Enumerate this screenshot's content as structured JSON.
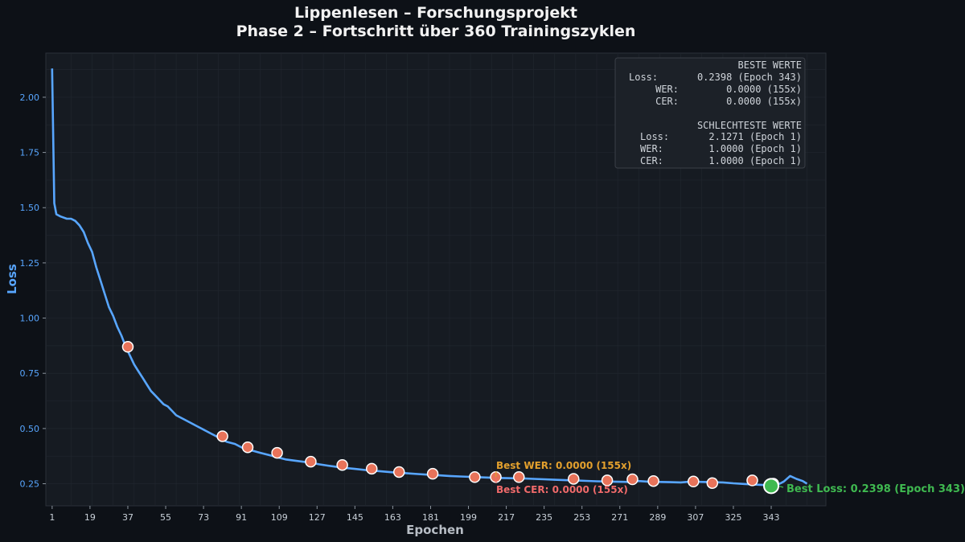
{
  "chart_data": {
    "type": "line",
    "title": "Lippenlesen – Forschungsprojekt",
    "subtitle": "Phase 2 – Fortschritt über 360 Trainingszyklen",
    "xlabel": "Epochen",
    "ylabel": "Loss",
    "xlim": [
      -2,
      369
    ],
    "ylim": [
      0.15,
      2.2
    ],
    "x_ticks": [
      1,
      19,
      37,
      55,
      73,
      91,
      109,
      127,
      145,
      163,
      181,
      199,
      217,
      235,
      253,
      271,
      289,
      307,
      325,
      343
    ],
    "y_ticks": [
      0.25,
      0.5,
      0.75,
      1.0,
      1.25,
      1.5,
      1.75,
      2.0
    ],
    "y_tick_labels": [
      "0.25",
      "0.50",
      "0.75",
      "1.00",
      "1.25",
      "1.50",
      "1.75",
      "2.00"
    ],
    "grid": true,
    "series": [
      {
        "name": "",
        "color": "#58a6ff",
        "x": [
          1,
          2,
          3,
          5,
          8,
          10,
          12,
          14,
          16,
          18,
          20,
          22,
          24,
          26,
          28,
          30,
          32,
          34,
          36,
          38,
          40,
          42,
          44,
          46,
          48,
          50,
          52,
          54,
          56,
          58,
          60,
          62,
          64,
          66,
          68,
          70,
          72,
          74,
          76,
          78,
          80,
          84,
          88,
          92,
          96,
          100,
          104,
          108,
          112,
          116,
          120,
          124,
          128,
          132,
          136,
          140,
          145,
          150,
          155,
          160,
          165,
          170,
          175,
          180,
          185,
          190,
          195,
          200,
          205,
          210,
          215,
          220,
          225,
          230,
          235,
          240,
          245,
          250,
          255,
          260,
          265,
          270,
          275,
          280,
          285,
          290,
          295,
          300,
          305,
          310,
          315,
          320,
          325,
          330,
          335,
          340,
          343,
          346,
          349,
          352,
          355,
          358,
          360
        ],
        "y": [
          2.13,
          1.52,
          1.47,
          1.46,
          1.45,
          1.45,
          1.44,
          1.42,
          1.39,
          1.34,
          1.3,
          1.23,
          1.17,
          1.11,
          1.05,
          1.01,
          0.96,
          0.92,
          0.87,
          0.83,
          0.79,
          0.76,
          0.73,
          0.7,
          0.67,
          0.65,
          0.63,
          0.61,
          0.6,
          0.58,
          0.56,
          0.55,
          0.54,
          0.53,
          0.52,
          0.51,
          0.5,
          0.49,
          0.48,
          0.47,
          0.46,
          0.44,
          0.43,
          0.41,
          0.4,
          0.39,
          0.38,
          0.37,
          0.36,
          0.355,
          0.35,
          0.345,
          0.338,
          0.332,
          0.327,
          0.322,
          0.317,
          0.312,
          0.308,
          0.304,
          0.3,
          0.297,
          0.294,
          0.291,
          0.288,
          0.285,
          0.283,
          0.281,
          0.279,
          0.277,
          0.276,
          0.275,
          0.274,
          0.272,
          0.27,
          0.268,
          0.266,
          0.265,
          0.263,
          0.261,
          0.26,
          0.259,
          0.258,
          0.262,
          0.259,
          0.258,
          0.257,
          0.256,
          0.26,
          0.258,
          0.257,
          0.256,
          0.252,
          0.249,
          0.246,
          0.244,
          0.24,
          0.245,
          0.26,
          0.285,
          0.272,
          0.262,
          0.25
        ]
      }
    ],
    "markers": {
      "color": "#e8735a",
      "x": [
        37,
        82,
        94,
        108,
        124,
        139,
        153,
        166,
        182,
        202,
        212,
        223,
        249,
        265,
        277,
        287,
        306,
        315,
        334,
        344
      ],
      "y": [
        0.87,
        0.465,
        0.415,
        0.39,
        0.35,
        0.335,
        0.318,
        0.303,
        0.295,
        0.28,
        0.28,
        0.28,
        0.272,
        0.265,
        0.27,
        0.262,
        0.26,
        0.253,
        0.265,
        0.25
      ]
    },
    "best_point": {
      "x": 343,
      "y": 0.2398,
      "color": "#3fb950",
      "label": "Best Loss: 0.2398 (Epoch 343)"
    },
    "annotations": [
      {
        "text": "Best WER: 0.0000 (155x)",
        "color": "#e3a02d",
        "x": 212,
        "y": 0.28
      },
      {
        "text": "Best CER: 0.0000 (155x)",
        "color": "#f06a6a",
        "x": 212,
        "y": 0.28
      }
    ],
    "stats_box": {
      "placement": "top-right",
      "best_heading": "BESTE WERTE",
      "best": [
        {
          "label": "Loss:",
          "value": "0.2398 (Epoch 343)"
        },
        {
          "label": "WER:",
          "value": "0.0000 (155x)"
        },
        {
          "label": "CER:",
          "value": "0.0000 (155x)"
        }
      ],
      "worst_heading": "SCHLECHTESTE WERTE",
      "worst": [
        {
          "label": "Loss:",
          "value": "2.1271 (Epoch 1)"
        },
        {
          "label": "WER:",
          "value": "1.0000 (Epoch 1)"
        },
        {
          "label": "CER:",
          "value": "1.0000 (Epoch 1)"
        }
      ]
    }
  }
}
